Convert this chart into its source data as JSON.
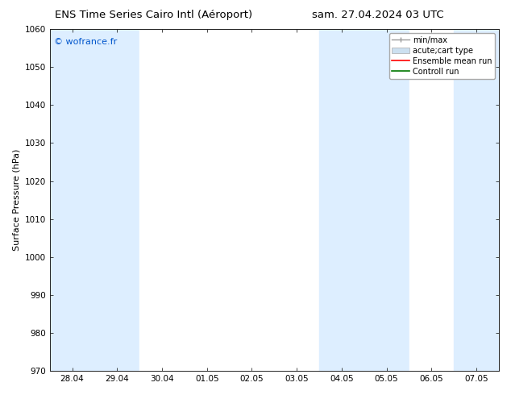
{
  "title_left": "ENS Time Series Cairo Intl (Aéroport)",
  "title_right": "sam. 27.04.2024 03 UTC",
  "ylabel": "Surface Pressure (hPa)",
  "ylim": [
    970,
    1060
  ],
  "yticks": [
    970,
    980,
    990,
    1000,
    1010,
    1020,
    1030,
    1040,
    1050,
    1060
  ],
  "xtick_labels": [
    "28.04",
    "29.04",
    "30.04",
    "01.05",
    "02.05",
    "03.05",
    "04.05",
    "05.05",
    "06.05",
    "07.05"
  ],
  "watermark": "© wofrance.fr",
  "watermark_color": "#0055cc",
  "bg_color": "#ffffff",
  "plot_bg_color": "#ffffff",
  "shaded_bands": [
    {
      "xstart": -0.5,
      "xend": 0.5,
      "color": "#ddeeff"
    },
    {
      "xstart": 0.5,
      "xend": 1.5,
      "color": "#ddeeff"
    },
    {
      "xstart": 1.5,
      "xend": 2.5,
      "color": "#ffffff"
    },
    {
      "xstart": 2.5,
      "xend": 3.5,
      "color": "#ffffff"
    },
    {
      "xstart": 3.5,
      "xend": 4.5,
      "color": "#ffffff"
    },
    {
      "xstart": 4.5,
      "xend": 5.5,
      "color": "#ffffff"
    },
    {
      "xstart": 5.5,
      "xend": 6.5,
      "color": "#ddeeff"
    },
    {
      "xstart": 6.5,
      "xend": 7.5,
      "color": "#ddeeff"
    },
    {
      "xstart": 7.5,
      "xend": 8.5,
      "color": "#ffffff"
    },
    {
      "xstart": 8.5,
      "xend": 9.5,
      "color": "#ddeeff"
    }
  ],
  "legend_entries": [
    {
      "label": "min/max",
      "type": "errorbar",
      "color": "#aaaaaa"
    },
    {
      "label": "acute;cart type",
      "type": "bar",
      "color": "#cce0f0"
    },
    {
      "label": "Ensemble mean run",
      "type": "line",
      "color": "#ff0000"
    },
    {
      "label": "Controll run",
      "type": "line",
      "color": "#007700"
    }
  ],
  "title_fontsize": 9.5,
  "axis_label_fontsize": 8,
  "tick_fontsize": 7.5,
  "legend_fontsize": 7,
  "watermark_fontsize": 8
}
